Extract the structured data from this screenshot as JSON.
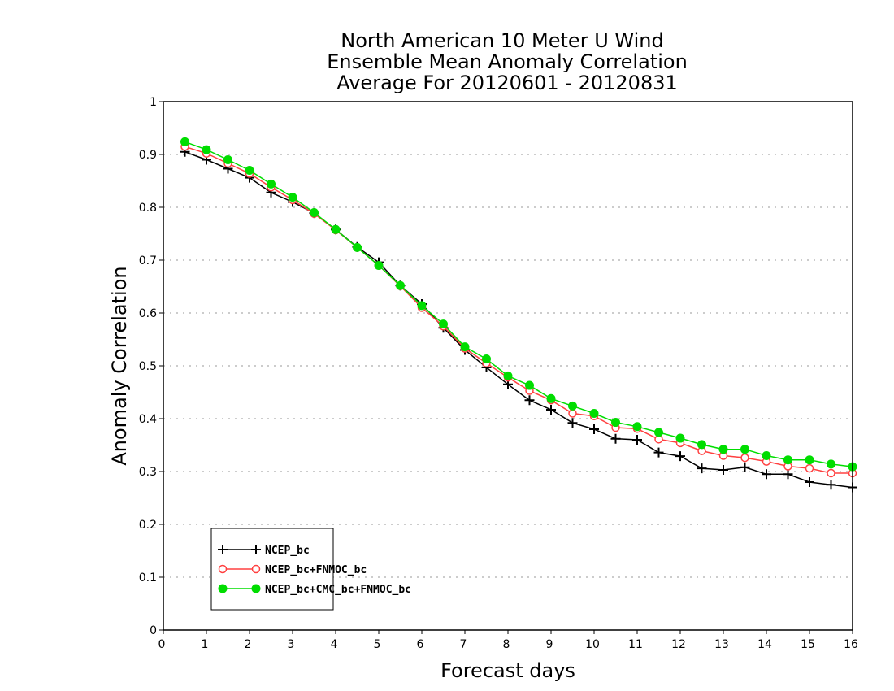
{
  "chart_data": {
    "type": "line",
    "title": [
      "North American 10 Meter U Wind",
      "Ensemble Mean Anomaly Correlation",
      "Average For 20120601 - 20120831"
    ],
    "xlabel": "Forecast days",
    "ylabel": "Anomaly Correlation",
    "xlim": [
      0,
      16
    ],
    "ylim": [
      0,
      1
    ],
    "xticks": [
      "0",
      "1",
      "2",
      "3",
      "4",
      "5",
      "6",
      "7",
      "8",
      "9",
      "10",
      "11",
      "12",
      "13",
      "14",
      "15",
      "16"
    ],
    "yticks": [
      "0",
      "0.1",
      "0.2",
      "0.3",
      "0.4",
      "0.5",
      "0.6",
      "0.7",
      "0.8",
      "0.9",
      "1"
    ],
    "grid": true,
    "legend_position": "bottom-left",
    "x": [
      0.5,
      1,
      1.5,
      2,
      2.5,
      3,
      3.5,
      4,
      4.5,
      5,
      5.5,
      6,
      6.5,
      7,
      7.5,
      8,
      8.5,
      9,
      9.5,
      10,
      10.5,
      11,
      11.5,
      12,
      12.5,
      13,
      13.5,
      14,
      14.5,
      15,
      15.5,
      16
    ],
    "series": [
      {
        "name": "NCEP_bc",
        "color": "#000000",
        "marker": "plus",
        "values": [
          0.905,
          0.89,
          0.873,
          0.856,
          0.828,
          0.81,
          0.789,
          0.758,
          0.725,
          0.696,
          0.652,
          0.617,
          0.572,
          0.53,
          0.497,
          0.465,
          0.435,
          0.417,
          0.392,
          0.38,
          0.362,
          0.36,
          0.336,
          0.329,
          0.306,
          0.303,
          0.308,
          0.295,
          0.295,
          0.28,
          0.275,
          0.27
        ]
      },
      {
        "name": "NCEP_bc+FNMOC_bc",
        "color": "#ff4040",
        "marker": "open-circle",
        "values": [
          0.915,
          0.902,
          0.883,
          0.864,
          0.838,
          0.814,
          0.788,
          0.757,
          0.724,
          0.69,
          0.651,
          0.61,
          0.575,
          0.533,
          0.505,
          0.478,
          0.453,
          0.435,
          0.41,
          0.405,
          0.383,
          0.381,
          0.361,
          0.354,
          0.339,
          0.33,
          0.326,
          0.319,
          0.31,
          0.306,
          0.297,
          0.297
        ]
      },
      {
        "name": "NCEP_bc+CMC_bc+FNMOC_bc",
        "color": "#00dd00",
        "marker": "filled-circle",
        "values": [
          0.924,
          0.909,
          0.89,
          0.87,
          0.844,
          0.819,
          0.79,
          0.758,
          0.724,
          0.69,
          0.652,
          0.614,
          0.579,
          0.536,
          0.513,
          0.481,
          0.463,
          0.438,
          0.424,
          0.41,
          0.393,
          0.385,
          0.374,
          0.363,
          0.351,
          0.342,
          0.342,
          0.33,
          0.322,
          0.322,
          0.314,
          0.309
        ]
      }
    ]
  }
}
